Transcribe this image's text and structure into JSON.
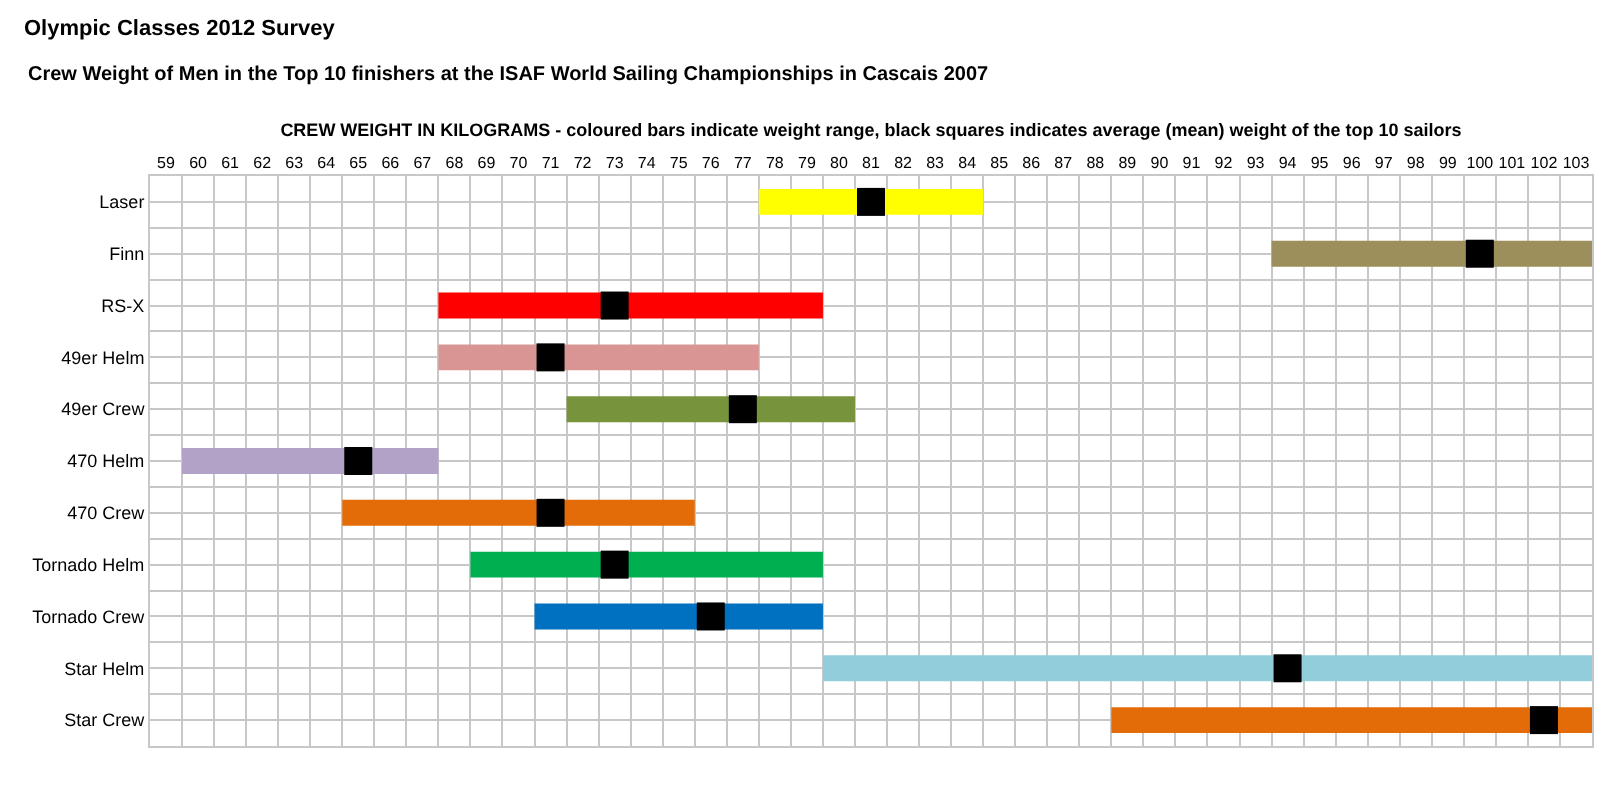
{
  "chart_data": {
    "type": "bar",
    "orientation": "horizontal",
    "title": "Olympic Classes 2012 Survey",
    "subtitle": "Crew Weight of Men in the Top 10 finishers at the ISAF World Sailing Championships in Cascais 2007",
    "xlabel": "CREW WEIGHT IN KILOGRAMS - coloured bars indicate weight range, black squares indicates average (mean) weight of the top 10 sailors",
    "categories": [
      "Laser",
      "Finn",
      "RS-X",
      "49er Helm",
      "49er Crew",
      "470 Helm",
      "470 Crew",
      "Tornado Helm",
      "Tornado Crew",
      "Star Helm",
      "Star Crew"
    ],
    "series": [
      {
        "values": [
          7,
          10,
          12,
          10,
          9,
          8,
          11,
          11,
          9,
          24,
          15
        ],
        "base": [
          77.5,
          93.5,
          67.5,
          67.5,
          71.5,
          59.5,
          64.5,
          68.5,
          70.5,
          79.5,
          88.5
        ],
        "colors": [
          "#ffff00",
          "#9c8f5c",
          "#ff0000",
          "#d99594",
          "#77933c",
          "#b3a2c7",
          "#e36c09",
          "#00b050",
          "#0070c0",
          "#92cddc",
          "#e36c09"
        ]
      },
      {
        "type": "scatter",
        "color": "#000000",
        "marker": "square",
        "values": [
          81,
          100,
          73,
          71,
          77,
          65,
          71,
          73,
          76,
          94,
          102
        ]
      }
    ],
    "xlim": [
      58.5,
      103.5
    ],
    "xticks": [
      59,
      60,
      61,
      62,
      63,
      64,
      65,
      66,
      67,
      68,
      69,
      70,
      71,
      72,
      73,
      74,
      75,
      76,
      77,
      78,
      79,
      80,
      81,
      82,
      83,
      84,
      85,
      86,
      87,
      88,
      89,
      90,
      91,
      92,
      93,
      94,
      95,
      96,
      97,
      98,
      99,
      100,
      101,
      102,
      103
    ],
    "grid": true
  }
}
